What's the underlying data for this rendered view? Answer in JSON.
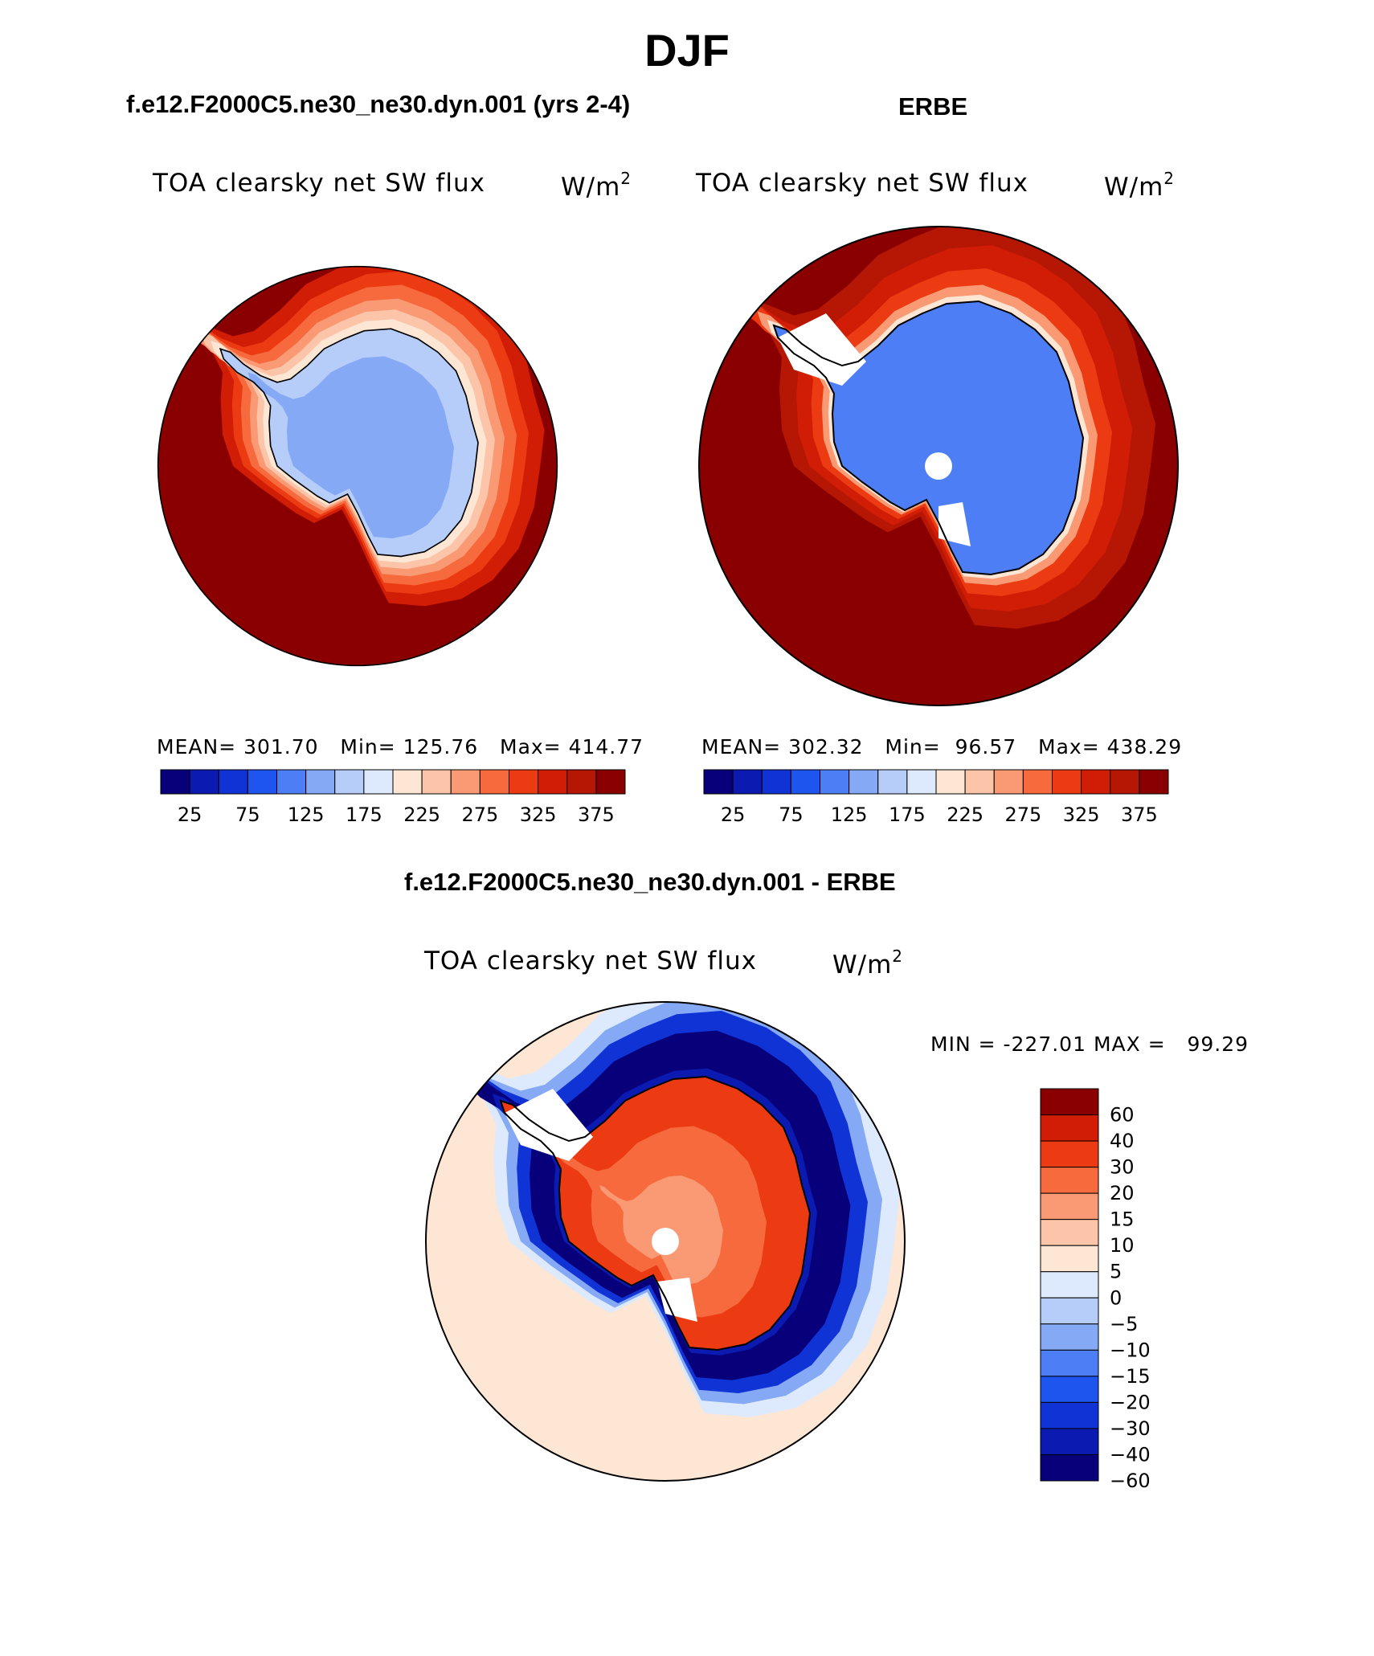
{
  "page_title": "DJF",
  "colors": {
    "absolute_scale": [
      "#08007b",
      "#0b1ab0",
      "#1033d6",
      "#1f55ef",
      "#4d7ef5",
      "#86a9f5",
      "#b6cdf9",
      "#dde9fc",
      "#fde6d4",
      "#fcc4a8",
      "#f99a75",
      "#f66a3d",
      "#ec3b12",
      "#d11d06",
      "#b61705",
      "#8a0000"
    ],
    "diff_scale": [
      "#08007b",
      "#0b1ab0",
      "#1033d6",
      "#1f55ef",
      "#4d7ef5",
      "#86a9f5",
      "#b6cdf9",
      "#dde9fc",
      "#fde6d4",
      "#fcc4a8",
      "#f99a75",
      "#f66a3d",
      "#ec3b12",
      "#d11d06",
      "#8a0000"
    ],
    "land_white": "#ffffff",
    "outline": "#000000"
  },
  "chart_data": [
    {
      "type": "heatmap",
      "panel": "model",
      "title": "f.e12.F2000C5.ne30_ne30.dyn.001 (yrs 2-4)",
      "variable": "TOA clearsky net SW flux",
      "units": "W/m",
      "units_exp": "2",
      "projection": "polar stereographic (South Pole)",
      "stats": {
        "mean_label": "MEAN=",
        "mean": "301.70",
        "min_label": "Min=",
        "min": "125.76",
        "max_label": "Max=",
        "max": "414.77"
      },
      "colorbar_ticks": [
        "25",
        "75",
        "125",
        "175",
        "225",
        "275",
        "325",
        "375"
      ],
      "region_values": {
        "open_ocean": 395,
        "sea_ice_edge": 300,
        "antarctic_interior": 150,
        "antarctic_coast": 175
      }
    },
    {
      "type": "heatmap",
      "panel": "observations",
      "title": "ERBE",
      "variable": "TOA clearsky net SW flux",
      "units": "W/m",
      "units_exp": "2",
      "projection": "polar stereographic (South Pole)",
      "stats": {
        "mean_label": "MEAN=",
        "mean": "302.32",
        "min_label": "Min=",
        "min": "96.57",
        "max_label": "Max=",
        "max": "438.29"
      },
      "colorbar_ticks": [
        "25",
        "75",
        "125",
        "175",
        "225",
        "275",
        "325",
        "375"
      ],
      "region_values": {
        "open_ocean": 395,
        "sea_ice_edge": 320,
        "antarctic_interior": 115,
        "antarctic_coast": 140
      }
    },
    {
      "type": "heatmap",
      "panel": "difference",
      "title": "f.e12.F2000C5.ne30_ne30.dyn.001 - ERBE",
      "variable": "TOA clearsky net SW flux",
      "units": "W/m",
      "units_exp": "2",
      "projection": "polar stereographic (South Pole)",
      "stats": {
        "min_label": "MIN =",
        "min": "-227.01",
        "max_label": "MAX =",
        "max": "99.29"
      },
      "colorbar_ticks": [
        "60",
        "40",
        "30",
        "20",
        "15",
        "10",
        "5",
        "0",
        "−5",
        "−10",
        "−15",
        "−20",
        "−30",
        "−40",
        "−60"
      ],
      "region_values": {
        "open_ocean": 5,
        "sea_ice_edge": -60,
        "antarctic_interior": 30
      }
    }
  ]
}
